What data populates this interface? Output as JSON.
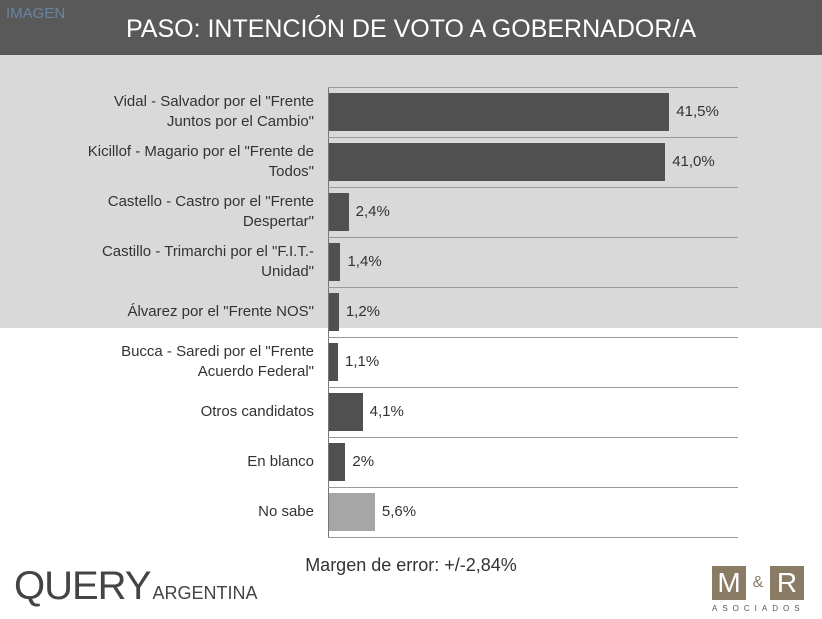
{
  "chart_data": {
    "type": "bar",
    "orientation": "horizontal",
    "title": "PASO: INTENCIÓN DE VOTO A GOBERNADOR/A",
    "watermark": "IMAGEN",
    "categories": [
      "Vidal - Salvador por el \"Frente Juntos por el Cambio\"",
      "Kicillof - Magario por el \"Frente de Todos\"",
      "Castello - Castro por el \"Frente Despertar\"",
      "Castillo - Trimarchi por el \"F.I.T.-Unidad\"",
      "Álvarez por el \"Frente NOS\"",
      "Bucca - Saredi por el \"Frente Acuerdo Federal\"",
      "Otros candidatos",
      "En blanco",
      "No sabe"
    ],
    "values": [
      41.5,
      41.0,
      2.4,
      1.4,
      1.2,
      1.1,
      4.1,
      2,
      5.6
    ],
    "value_labels": [
      "41,5%",
      "41,0%",
      "2,4%",
      "1,4%",
      "1,2%",
      "1,1%",
      "4,1%",
      "2%",
      "5,6%"
    ],
    "colors": [
      "#505050",
      "#505050",
      "#505050",
      "#505050",
      "#505050",
      "#505050",
      "#505050",
      "#505050",
      "#a6a6a6"
    ],
    "note": "Margen de error: +/-2,84%",
    "logo_left": [
      "QUERY",
      "ARGENTINA"
    ],
    "logo_right": [
      "M",
      "&",
      "R",
      "ASOCIADOS"
    ]
  }
}
